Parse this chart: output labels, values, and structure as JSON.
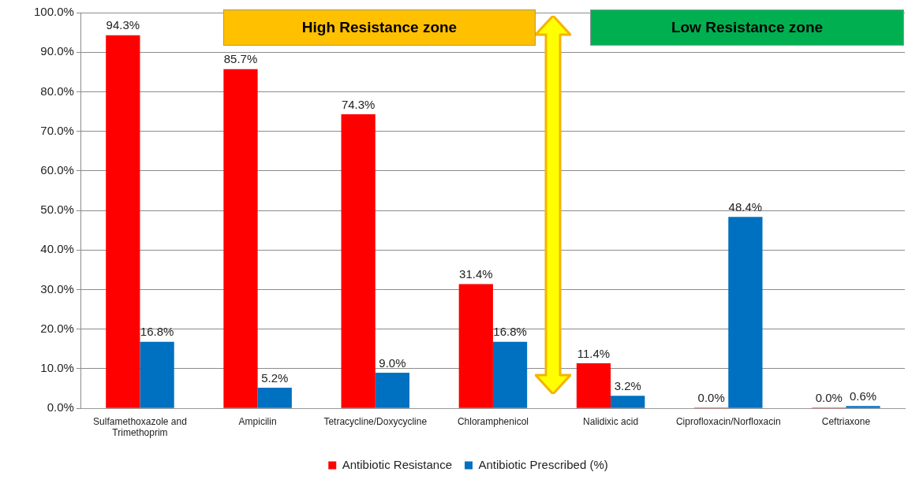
{
  "chart_data": {
    "type": "bar",
    "categories": [
      "Sulfamethoxazole and Trimethoprim",
      "Ampicilin",
      "Tetracycline/Doxycycline",
      "Chloramphenicol",
      "Nalidixic acid",
      "Ciprofloxacin/Norfloxacin",
      "Ceftriaxone"
    ],
    "series": [
      {
        "name": "Antibiotic Resistance",
        "color": "#ff0000",
        "values": [
          94.3,
          85.7,
          74.3,
          31.4,
          11.4,
          0.0,
          0.0
        ],
        "value_labels": [
          "94.3%",
          "85.7%",
          "74.3%",
          "31.4%",
          "11.4%",
          "0.0%",
          "0.0%"
        ]
      },
      {
        "name": "Antibiotic Prescribed (%)",
        "color": "#0070c0",
        "values": [
          16.8,
          5.2,
          9.0,
          16.8,
          3.2,
          48.4,
          0.6
        ],
        "value_labels": [
          "16.8%",
          "5.2%",
          "9.0%",
          "16.8%",
          "3.2%",
          "48.4%",
          "0.6%"
        ]
      }
    ],
    "ylim": [
      0,
      100
    ],
    "yticks": [
      {
        "value": 0,
        "label": "0.0%"
      },
      {
        "value": 10,
        "label": "10.0%"
      },
      {
        "value": 20,
        "label": "20.0%"
      },
      {
        "value": 30,
        "label": "30.0%"
      },
      {
        "value": 40,
        "label": "40.0%"
      },
      {
        "value": 50,
        "label": "50.0%"
      },
      {
        "value": 60,
        "label": "60.0%"
      },
      {
        "value": 70,
        "label": "70.0%"
      },
      {
        "value": 80,
        "label": "80.0%"
      },
      {
        "value": 90,
        "label": "90.0%"
      },
      {
        "value": 100,
        "label": "100.0%"
      }
    ],
    "grid": "y",
    "legend": "bottom",
    "annotations": [
      "High Resistance zone",
      "Low Resistance zone"
    ]
  }
}
